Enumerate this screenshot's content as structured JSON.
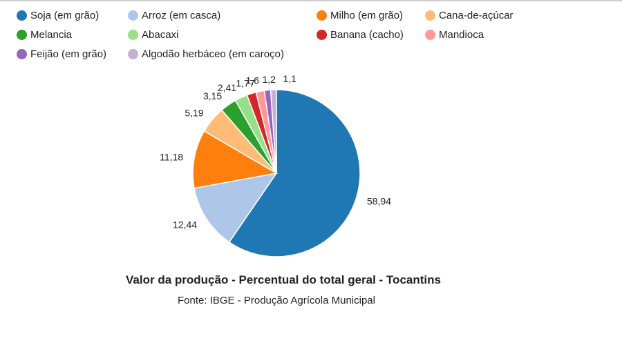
{
  "chart_data": {
    "type": "pie",
    "title": "Valor da produção - Percentual do total geral - Tocantins",
    "subtitle": "Fonte: IBGE - Produção Agrícola Municipal",
    "legend_position": "top",
    "slices": [
      {
        "name": "Soja (em grão)",
        "value": 58.94,
        "label": "58,94",
        "color": "#1f77b4"
      },
      {
        "name": "Arroz (em casca)",
        "value": 12.44,
        "label": "12,44",
        "color": "#aec7e8"
      },
      {
        "name": "Milho (em grão)",
        "value": 11.18,
        "label": "11,18",
        "color": "#ff7f0e"
      },
      {
        "name": "Cana-de-açúcar",
        "value": 5.19,
        "label": "5,19",
        "color": "#ffbb78"
      },
      {
        "name": "Melancia",
        "value": 3.15,
        "label": "3,15",
        "color": "#2ca02c"
      },
      {
        "name": "Abacaxi",
        "value": 2.41,
        "label": "2,41",
        "color": "#98df8a"
      },
      {
        "name": "Banana (cacho)",
        "value": 1.77,
        "label": "1,77",
        "color": "#d62728"
      },
      {
        "name": "Mandioca",
        "value": 1.6,
        "label": "1,6",
        "color": "#ff9896"
      },
      {
        "name": "Feijão (em grão)",
        "value": 1.2,
        "label": "1,2",
        "color": "#9467bd"
      },
      {
        "name": "Algodão herbáceo (em caroço)",
        "value": 1.1,
        "label": "1,1",
        "color": "#c5b0d5"
      }
    ]
  }
}
